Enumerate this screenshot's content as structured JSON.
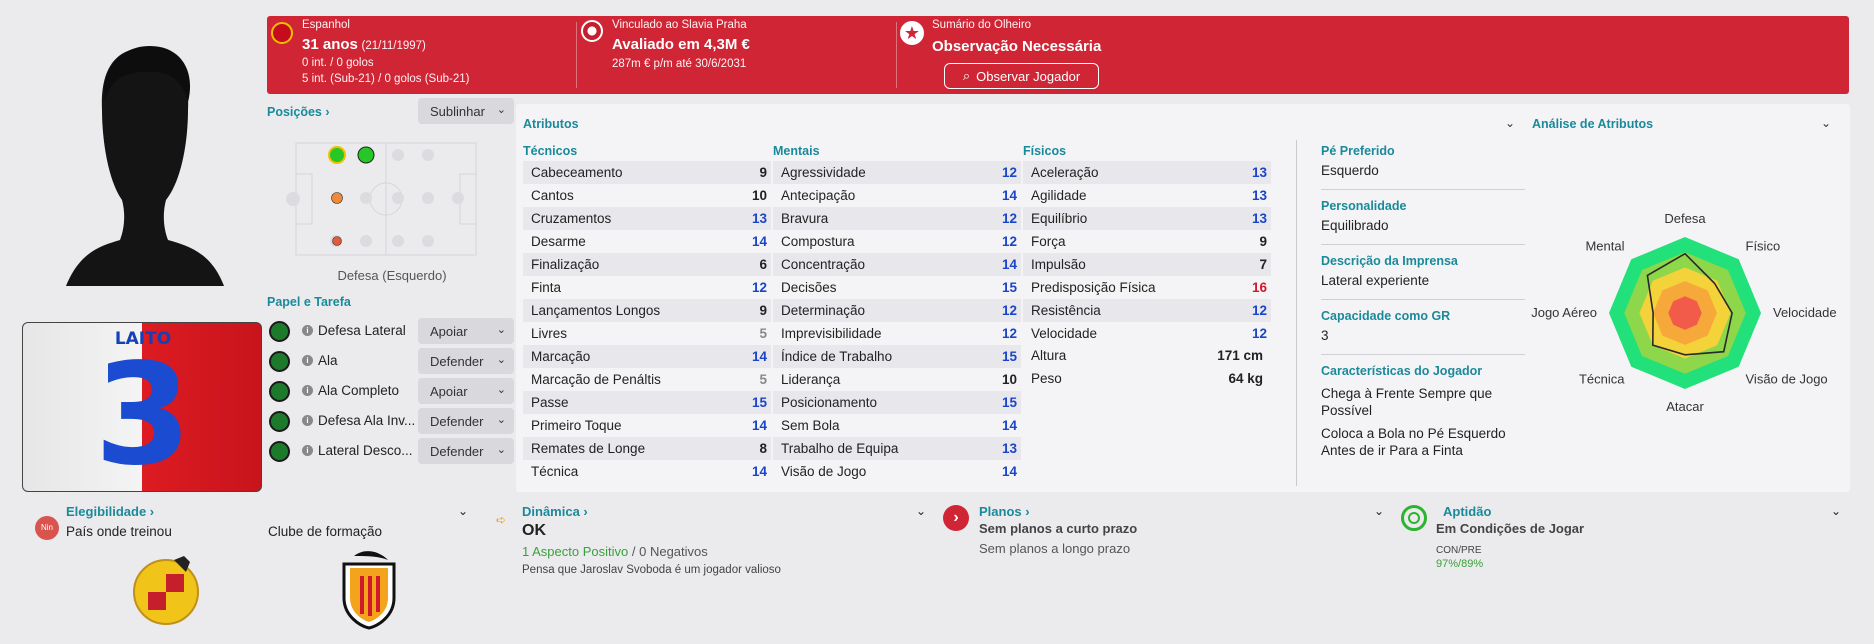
{
  "header": {
    "nation": "Espanhol",
    "age": "31 anos",
    "dob": "(21/11/1997)",
    "caps": "0 int. / 0 golos",
    "u21_caps": "5 int. (Sub-21) / 0 golos (Sub-21)",
    "contract_club": "Vinculado ao Slavia Praha",
    "value": "Avaliado em 4,3M €",
    "wage": "287m € p/m até 30/6/2031",
    "scout_title": "Sumário do Olheiro",
    "scout_status": "Observação Necessária",
    "scout_button": "Observar Jogador",
    "color": "#cf2534"
  },
  "kit": {
    "name": "LAITO",
    "number": "3"
  },
  "positions": {
    "label": "Posições",
    "highlight_button": "Sublinhar",
    "caption": "Defesa (Esquerdo)"
  },
  "roles": {
    "title": "Papel e Tarefa",
    "items": [
      {
        "name": "Defesa Lateral",
        "duty": "Apoiar"
      },
      {
        "name": "Ala",
        "duty": "Defender"
      },
      {
        "name": "Ala Completo",
        "duty": "Apoiar"
      },
      {
        "name": "Defesa Ala Inv...",
        "duty": "Defender"
      },
      {
        "name": "Lateral Desco...",
        "duty": "Defender"
      }
    ]
  },
  "attributes": {
    "title": "Atributos",
    "technical": {
      "label": "Técnicos",
      "items": [
        {
          "name": "Cabeceamento",
          "value": "9",
          "color": "#222222"
        },
        {
          "name": "Cantos",
          "value": "10",
          "color": "#222222"
        },
        {
          "name": "Cruzamentos",
          "value": "13",
          "color": "#1b45c8"
        },
        {
          "name": "Desarme",
          "value": "14",
          "color": "#1b45c8"
        },
        {
          "name": "Finalização",
          "value": "6",
          "color": "#222222"
        },
        {
          "name": "Finta",
          "value": "12",
          "color": "#1b45c8"
        },
        {
          "name": "Lançamentos Longos",
          "value": "9",
          "color": "#222222"
        },
        {
          "name": "Livres",
          "value": "5",
          "color": "#888888"
        },
        {
          "name": "Marcação",
          "value": "14",
          "color": "#1b45c8"
        },
        {
          "name": "Marcação de Penáltis",
          "value": "5",
          "color": "#888888"
        },
        {
          "name": "Passe",
          "value": "15",
          "color": "#1b45c8"
        },
        {
          "name": "Primeiro Toque",
          "value": "14",
          "color": "#1b45c8"
        },
        {
          "name": "Remates de Longe",
          "value": "8",
          "color": "#222222"
        },
        {
          "name": "Técnica",
          "value": "14",
          "color": "#1b45c8"
        }
      ]
    },
    "mental": {
      "label": "Mentais",
      "items": [
        {
          "name": "Agressividade",
          "value": "12",
          "color": "#1b45c8"
        },
        {
          "name": "Antecipação",
          "value": "14",
          "color": "#1b45c8"
        },
        {
          "name": "Bravura",
          "value": "12",
          "color": "#1b45c8"
        },
        {
          "name": "Compostura",
          "value": "12",
          "color": "#1b45c8"
        },
        {
          "name": "Concentração",
          "value": "14",
          "color": "#1b45c8"
        },
        {
          "name": "Decisões",
          "value": "15",
          "color": "#1b45c8"
        },
        {
          "name": "Determinação",
          "value": "12",
          "color": "#1b45c8"
        },
        {
          "name": "Imprevisibilidade",
          "value": "12",
          "color": "#1b45c8"
        },
        {
          "name": "Índice de Trabalho",
          "value": "15",
          "color": "#1b45c8"
        },
        {
          "name": "Liderança",
          "value": "10",
          "color": "#222222"
        },
        {
          "name": "Posicionamento",
          "value": "15",
          "color": "#1b45c8"
        },
        {
          "name": "Sem Bola",
          "value": "14",
          "color": "#1b45c8"
        },
        {
          "name": "Trabalho de Equipa",
          "value": "13",
          "color": "#1b45c8"
        },
        {
          "name": "Visão de Jogo",
          "value": "14",
          "color": "#1b45c8"
        }
      ]
    },
    "physical": {
      "label": "Físicos",
      "items": [
        {
          "name": "Aceleração",
          "value": "13",
          "color": "#1b45c8"
        },
        {
          "name": "Agilidade",
          "value": "13",
          "color": "#1b45c8"
        },
        {
          "name": "Equilíbrio",
          "value": "13",
          "color": "#1b45c8"
        },
        {
          "name": "Força",
          "value": "9",
          "color": "#222222"
        },
        {
          "name": "Impulsão",
          "value": "7",
          "color": "#222222"
        },
        {
          "name": "Predisposição Física",
          "value": "16",
          "color": "#d0192b"
        },
        {
          "name": "Resistência",
          "value": "12",
          "color": "#1b45c8"
        },
        {
          "name": "Velocidade",
          "value": "12",
          "color": "#1b45c8"
        }
      ],
      "height_label": "Altura",
      "height": "171 cm",
      "weight_label": "Peso",
      "weight": "64 kg"
    }
  },
  "info": {
    "foot_label": "Pé Preferido",
    "foot": "Esquerdo",
    "personality_label": "Personalidade",
    "personality": "Equilibrado",
    "press_label": "Descrição da Imprensa",
    "press": "Lateral experiente",
    "gk_label": "Capacidade como GR",
    "gk": "3",
    "traits_label": "Características do Jogador",
    "traits": [
      "Chega à Frente Sempre que Possível",
      "Coloca a Bola no Pé Esquerdo Antes de ir Para a Finta"
    ]
  },
  "radar": {
    "title": "Análise de Atributos",
    "axes": [
      "Defesa",
      "Físico",
      "Velocidade",
      "Visão de Jogo",
      "Atacar",
      "Técnica",
      "Jogo Aéreo",
      "Mental"
    ],
    "values": [
      0.78,
      0.55,
      0.62,
      0.72,
      0.55,
      0.6,
      0.42,
      0.7
    ]
  },
  "eligibility": {
    "label": "Elegibilidade",
    "badge": "Nin",
    "trained_label": "País onde treinou",
    "club_label": "Clube de formação"
  },
  "dynamics": {
    "label": "Dinâmica",
    "status": "OK",
    "positive": "1 Aspecto Positivo",
    "separator": "/",
    "negative": "0 Negativos",
    "note": "Pensa que Jaroslav Svoboda é um jogador valioso"
  },
  "plans": {
    "label": "Planos",
    "short": "Sem planos a curto prazo",
    "long": "Sem planos a longo prazo"
  },
  "fitness": {
    "label": "Aptidão",
    "status": "Em Condições de Jogar",
    "con_label": "CON/PRE",
    "con": "97%",
    "pre": "89%"
  }
}
